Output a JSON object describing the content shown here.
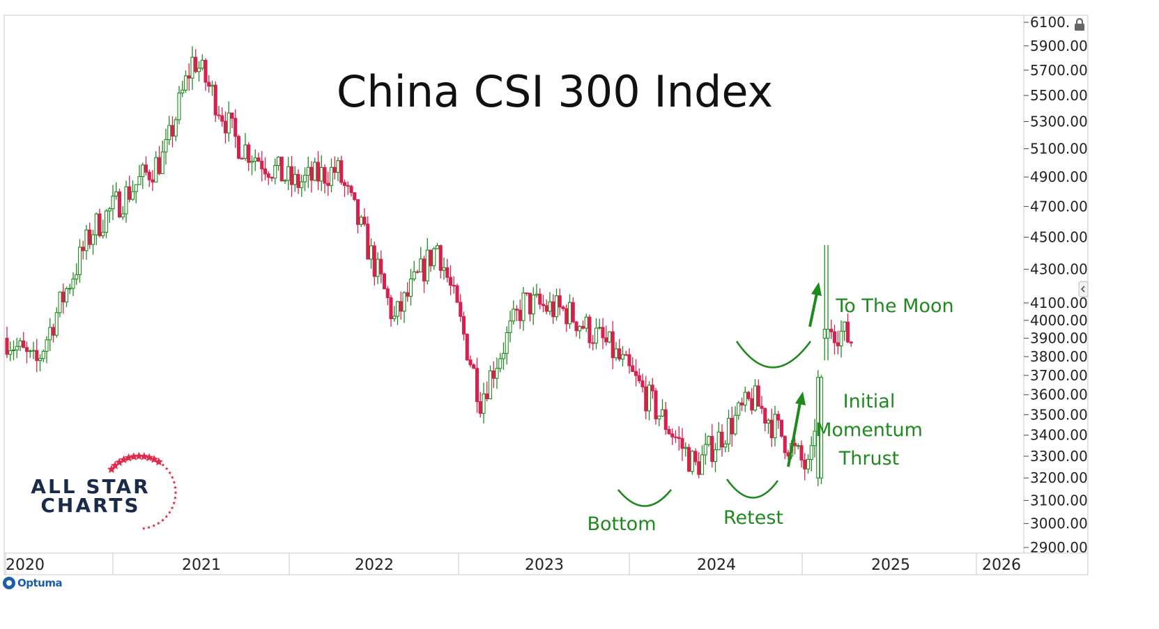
{
  "chart_data": {
    "type": "candlestick",
    "title": "China CSI 300 Index",
    "y_axis": {
      "position": "right",
      "ticks": [
        6100.0,
        5900.0,
        5700.0,
        5500.0,
        5300.0,
        5100.0,
        4900.0,
        4700.0,
        4500.0,
        4300.0,
        4100.0,
        4000.0,
        3900.0,
        3800.0,
        3700.0,
        3600.0,
        3500.0,
        3400.0,
        3300.0,
        3200.0,
        3100.0,
        3000.0,
        2900.0
      ],
      "tick_labels": [
        "6100.",
        "5900.00",
        "5700.00",
        "5500.00",
        "5300.00",
        "5100.00",
        "4900.00",
        "4700.00",
        "4500.00",
        "4300.00",
        "4100.00",
        "4000.00",
        "3900.00",
        "3800.00",
        "3700.00",
        "3600.00",
        "3500.00",
        "3400.00",
        "3300.00",
        "3200.00",
        "3100.00",
        "3000.00",
        "2900.00"
      ],
      "scale": "log",
      "range": [
        2900,
        6100
      ]
    },
    "x_axis": {
      "labels": [
        "2020",
        "2021",
        "2022",
        "2023",
        "2024",
        "2025",
        "2026"
      ]
    },
    "colors": {
      "up": "#1e8a1e",
      "down": "#d6204e",
      "annotation": "#1e8a1e"
    },
    "series": {
      "interval": "weekly",
      "sampled_closes": [
        {
          "date": "2020-01",
          "close": 3900
        },
        {
          "date": "2020-03",
          "close": 3750
        },
        {
          "date": "2020-07",
          "close": 4550
        },
        {
          "date": "2020-12",
          "close": 5050
        },
        {
          "date": "2021-02",
          "close": 5800
        },
        {
          "date": "2021-05",
          "close": 5150
        },
        {
          "date": "2021-09",
          "close": 4850
        },
        {
          "date": "2021-12",
          "close": 4950
        },
        {
          "date": "2022-04",
          "close": 4000
        },
        {
          "date": "2022-07",
          "close": 4450
        },
        {
          "date": "2022-10",
          "close": 3580
        },
        {
          "date": "2023-01",
          "close": 4100
        },
        {
          "date": "2023-04",
          "close": 4050
        },
        {
          "date": "2023-07",
          "close": 3850
        },
        {
          "date": "2023-10",
          "close": 3550
        },
        {
          "date": "2024-01",
          "close": 3250
        },
        {
          "date": "2024-05",
          "close": 3580
        },
        {
          "date": "2024-07",
          "close": 3400
        },
        {
          "date": "2024-09",
          "close": 3220
        },
        {
          "date": "2024-10",
          "close": 4000
        },
        {
          "date": "2024-12",
          "close": 3880
        }
      ]
    },
    "annotations": [
      "Bottom",
      "Retest",
      "Initial Momentum Thrust",
      "To The Moon"
    ]
  },
  "labels": {
    "bottom": "Bottom",
    "retest": "Retest",
    "thrust_line1": "Initial",
    "thrust_line2": "Momentum",
    "thrust_line3": "Thrust",
    "moon": "To The Moon"
  },
  "logo": {
    "line1": "ALL STAR",
    "line2": "CHARTS"
  },
  "brand": {
    "name": "Optuma"
  }
}
